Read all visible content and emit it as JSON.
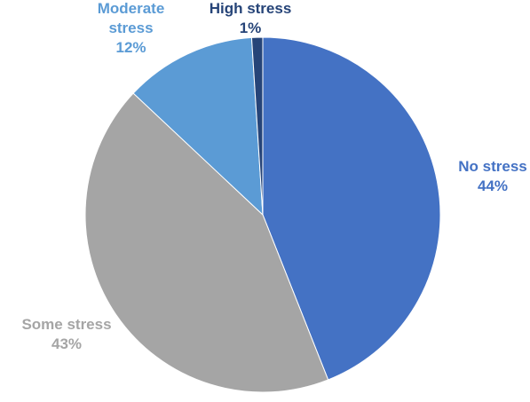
{
  "chart_data": {
    "type": "pie",
    "categories": [
      "No stress",
      "Some stress",
      "Moderate stress",
      "High stress"
    ],
    "values": [
      44,
      43,
      12,
      1
    ],
    "value_labels": [
      "44%",
      "43%",
      "12%",
      "1%"
    ],
    "colors": [
      "#4472c4",
      "#a5a5a5",
      "#5b9bd5",
      "#264478"
    ]
  }
}
